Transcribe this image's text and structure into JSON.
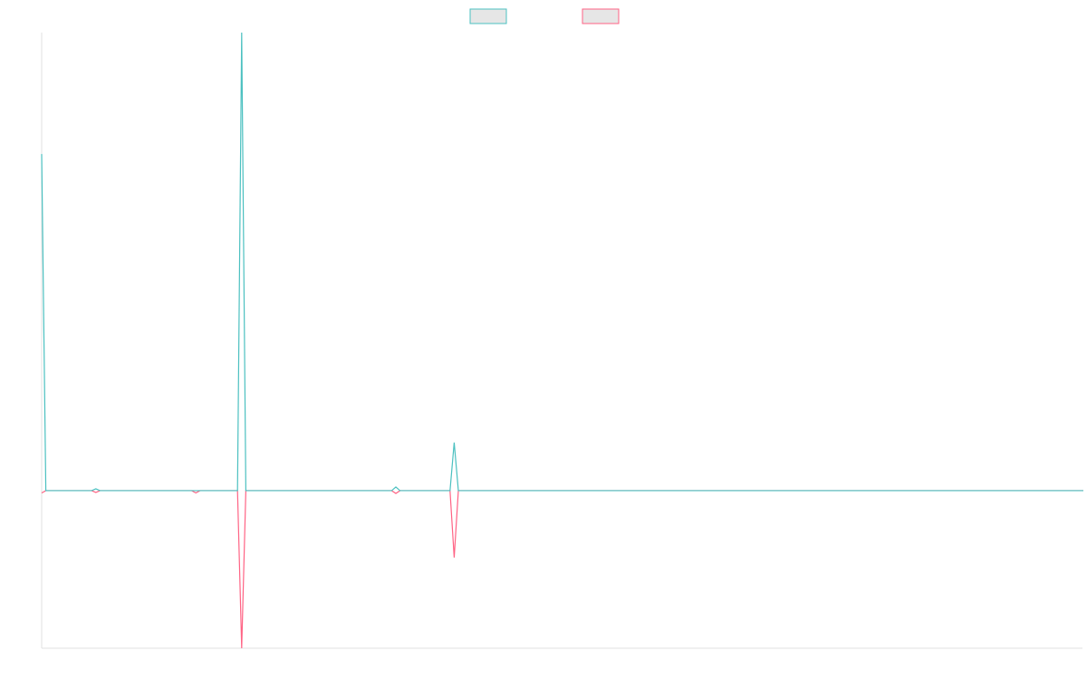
{
  "chart_data": {
    "type": "line",
    "legend": "top",
    "ylim": [
      -34.4,
      100
    ],
    "categories": [
      null,
      null,
      null,
      null,
      null,
      null,
      null,
      null,
      null,
      null,
      null,
      null,
      null,
      null,
      null,
      null,
      null,
      null,
      null,
      null,
      null,
      null,
      null,
      null,
      null,
      null,
      null,
      null,
      null,
      null,
      null,
      null,
      null,
      null,
      null,
      null,
      null,
      null,
      null,
      null,
      null,
      null,
      null,
      null,
      null,
      null,
      null,
      null,
      null,
      null,
      null,
      null,
      null,
      null,
      null,
      null,
      null,
      null,
      null,
      null,
      null,
      null,
      null,
      null,
      null,
      null,
      null,
      null,
      null,
      null,
      null,
      null,
      null,
      null,
      null,
      null,
      null,
      null,
      null,
      null,
      null,
      null,
      null,
      null,
      null,
      null,
      null,
      null,
      null,
      null,
      null,
      null,
      null,
      null,
      null,
      null,
      null,
      null,
      null,
      null,
      null,
      null,
      null,
      null,
      null,
      null,
      null,
      null,
      null,
      null,
      null,
      null,
      null,
      null,
      null,
      null,
      null,
      null,
      null,
      null,
      null,
      null,
      null,
      null,
      null,
      null,
      null,
      null,
      null,
      null,
      null,
      null,
      null,
      null,
      null,
      null,
      null,
      null,
      null,
      null,
      null,
      null,
      null,
      null,
      null,
      null,
      null,
      null,
      null,
      null,
      null,
      null,
      null,
      null,
      null,
      null,
      null,
      null,
      null,
      null,
      null,
      null,
      null,
      null,
      null,
      null,
      null,
      null,
      null,
      null,
      null,
      null,
      null,
      null,
      null,
      null,
      null,
      null,
      null,
      null,
      null,
      null,
      null,
      null,
      null,
      null,
      null,
      null,
      null,
      null,
      null,
      null,
      null,
      null,
      null,
      null,
      null,
      null,
      null,
      null,
      null,
      null,
      null,
      null,
      null,
      null,
      null,
      null,
      null,
      null,
      null,
      null,
      null,
      null,
      null,
      null,
      null,
      null,
      null,
      null,
      null,
      null,
      null,
      null,
      null,
      null,
      null,
      null,
      null,
      null,
      null,
      null,
      null,
      null,
      null,
      null,
      null,
      null,
      null,
      null,
      null,
      null,
      null,
      null,
      null,
      null,
      null,
      null,
      null,
      null,
      null
    ],
    "series": [
      {
        "color": "#4bc0c0",
        "values": [
          73.5,
          0,
          0,
          0,
          0,
          0,
          0,
          0,
          0,
          0,
          0,
          0,
          0,
          0.4,
          0,
          0,
          0,
          0,
          0,
          0,
          0,
          0,
          0,
          0,
          0,
          0,
          0,
          0,
          0,
          0,
          0,
          0,
          0,
          0,
          0,
          0,
          0,
          0,
          0,
          0,
          0,
          0,
          0,
          0,
          0,
          0,
          0,
          0,
          100,
          0,
          0,
          0,
          0,
          0,
          0,
          0,
          0,
          0,
          0,
          0,
          0,
          0,
          0,
          0,
          0,
          0,
          0,
          0,
          0,
          0,
          0,
          0,
          0,
          0,
          0,
          0,
          0,
          0,
          0,
          0,
          0,
          0,
          0,
          0,
          0,
          0.8,
          0,
          0,
          0,
          0,
          0,
          0,
          0,
          0,
          0,
          0,
          0,
          0,
          0,
          10.5,
          0,
          0,
          0,
          0,
          0,
          0,
          0,
          0,
          0,
          0,
          0,
          0,
          0,
          0,
          0,
          0,
          0,
          0,
          0,
          0,
          0,
          0,
          0,
          0,
          0,
          0,
          0,
          0,
          0,
          0,
          0,
          0,
          0,
          0,
          0,
          0,
          0,
          0,
          0,
          0,
          0,
          0,
          0,
          0,
          0,
          0,
          0,
          0,
          0,
          0,
          0,
          0,
          0,
          0,
          0,
          0,
          0,
          0,
          0,
          0,
          0,
          0,
          0,
          0,
          0,
          0,
          0,
          0,
          0,
          0,
          0,
          0,
          0,
          0,
          0,
          0,
          0,
          0,
          0,
          0,
          0,
          0,
          0,
          0,
          0,
          0,
          0,
          0,
          0,
          0,
          0,
          0,
          0,
          0,
          0,
          0,
          0,
          0,
          0,
          0,
          0,
          0,
          0,
          0,
          0,
          0,
          0,
          0,
          0,
          0,
          0,
          0,
          0,
          0,
          0,
          0,
          0,
          0,
          0,
          0,
          0,
          0,
          0,
          0,
          0,
          0,
          0,
          0,
          0,
          0,
          0,
          0,
          0,
          0,
          0,
          0,
          0,
          0,
          0,
          0,
          0,
          0,
          0,
          0,
          0,
          0,
          0,
          0,
          0,
          0,
          0
        ]
      },
      {
        "color": "#ff6384",
        "values": [
          -0.5,
          0,
          0,
          0,
          0,
          0,
          0,
          0,
          0,
          0,
          0,
          0,
          0,
          -0.4,
          0,
          0,
          0,
          0,
          0,
          0,
          0,
          0,
          0,
          0,
          0,
          0,
          0,
          0,
          0,
          0,
          0,
          0,
          0,
          0,
          0,
          0,
          0,
          -0.5,
          0,
          0,
          0,
          0,
          0,
          0,
          0,
          0,
          0,
          0,
          -34.4,
          0,
          0,
          0,
          0,
          0,
          0,
          0,
          0,
          0,
          0,
          0,
          0,
          0,
          0,
          0,
          0,
          0,
          0,
          0,
          0,
          0,
          0,
          0,
          0,
          0,
          0,
          0,
          0,
          0,
          0,
          0,
          0,
          0,
          0,
          0,
          0,
          -0.6,
          0,
          0,
          0,
          0,
          0,
          0,
          0,
          0,
          0,
          0,
          0,
          0,
          0,
          -14.6,
          0,
          0,
          0,
          0,
          0,
          0,
          0,
          0,
          0,
          0,
          0,
          0,
          0,
          0,
          0,
          0,
          0,
          0,
          0,
          0,
          0,
          0,
          0,
          0,
          0,
          0,
          0,
          0,
          0,
          0,
          0,
          0,
          0,
          0,
          0,
          0,
          0,
          0,
          0,
          0,
          0,
          0,
          0,
          0,
          0,
          0,
          0,
          0,
          0,
          0,
          0,
          0,
          0,
          0,
          0,
          0,
          0,
          0,
          0,
          0,
          0,
          0,
          0,
          0,
          0,
          0,
          0,
          0,
          0,
          0,
          0,
          0,
          0,
          0,
          0,
          0,
          0,
          0,
          0,
          0,
          0,
          0,
          0,
          0,
          0,
          0,
          0,
          0,
          0,
          0,
          0,
          0,
          0,
          0,
          0,
          0,
          0,
          0,
          0,
          0,
          0,
          0,
          0,
          0,
          0,
          0,
          0,
          0,
          0,
          0,
          0,
          0,
          0,
          0,
          0,
          0,
          0,
          0,
          0,
          0,
          0,
          0,
          0,
          0,
          0,
          0,
          0,
          0,
          0,
          0,
          0,
          0,
          0,
          0,
          0,
          0,
          0,
          0,
          0,
          0,
          0,
          0,
          0,
          0,
          0,
          0,
          0,
          0,
          0,
          0,
          0
        ]
      }
    ]
  }
}
